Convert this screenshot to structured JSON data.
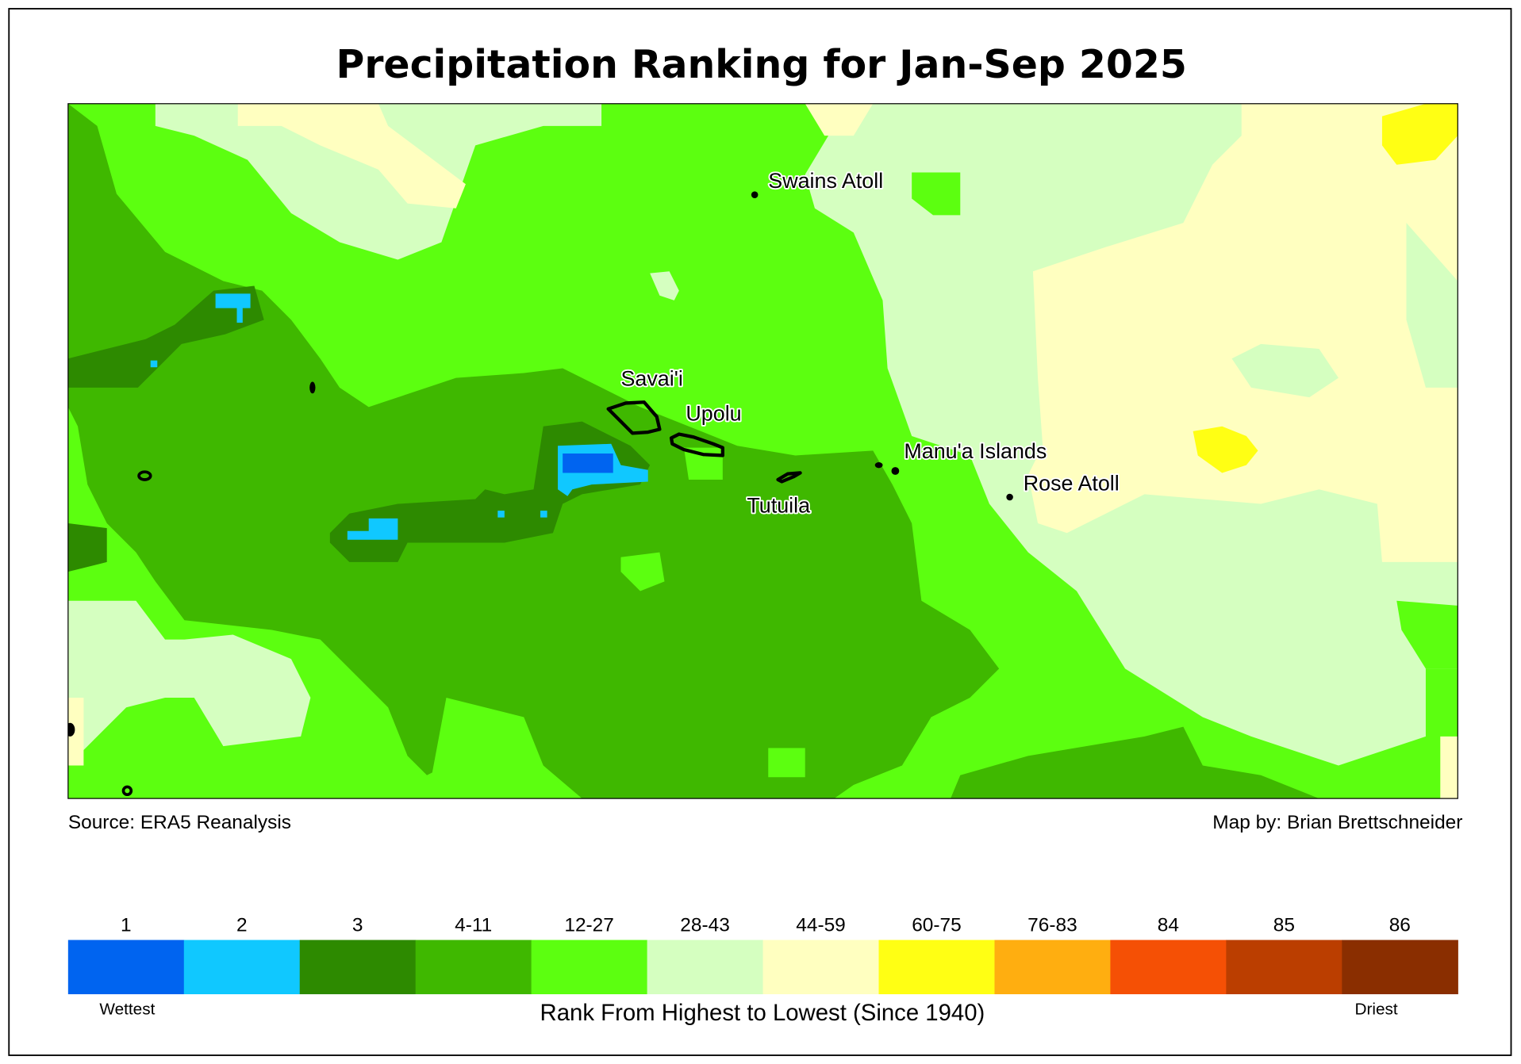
{
  "title": "Precipitation Ranking for Jan-Sep 2025",
  "source": "Source: ERA5 Reanalysis",
  "credit": "Map by: Brian Brettschneider",
  "places": {
    "swains": "Swains Atoll",
    "savaii": "Savai'i",
    "upolu": "Upolu",
    "manua": "Manu'a Islands",
    "rose": "Rose Atoll",
    "tutuila": "Tutuila"
  },
  "legend": {
    "axis_label": "Rank From Highest to Lowest (Since 1940)",
    "low_label": "Wettest",
    "high_label": "Driest",
    "classes": [
      {
        "label": "1",
        "color": "#0064f0"
      },
      {
        "label": "2",
        "color": "#10c8ff"
      },
      {
        "label": "3",
        "color": "#2d8a00"
      },
      {
        "label": "4-11",
        "color": "#3fb800"
      },
      {
        "label": "12-27",
        "color": "#5cff10"
      },
      {
        "label": "28-43",
        "color": "#d5ffc0"
      },
      {
        "label": "44-59",
        "color": "#ffffc0"
      },
      {
        "label": "60-75",
        "color": "#ffff14"
      },
      {
        "label": "76-83",
        "color": "#ffae10"
      },
      {
        "label": "84",
        "color": "#f55005"
      },
      {
        "label": "85",
        "color": "#bb3e00"
      },
      {
        "label": "86",
        "color": "#8a2e00"
      }
    ]
  }
}
